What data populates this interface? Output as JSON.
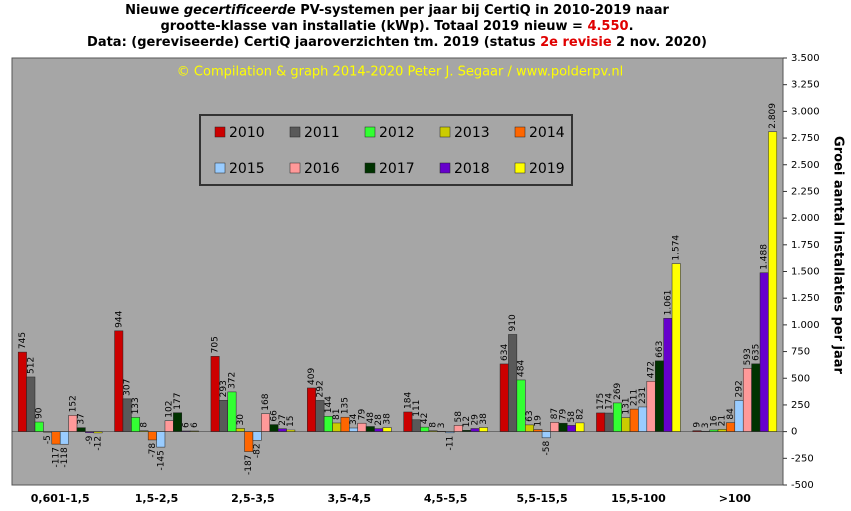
{
  "chart_data": {
    "type": "bar",
    "title": [
      [
        "Nieuwe ",
        "gecertificeerde",
        " PV-systemen per jaar bij CertiQ in 2010-2019 naar"
      ],
      [
        "grootte-klasse van installatie (kWp).  Totaal 2019 nieuw = ",
        "4.550",
        "."
      ],
      [
        "Data: (gereviseerde) CertiQ jaaroverzichten tm. 2019 (status ",
        "2e revisie",
        " 2 nov. 2020)"
      ]
    ],
    "annotation": "© Compilation  & graph 2014-2020 Peter J. Segaar / www.polderpv.nl",
    "y_label": "Groei aantal installaties per jaar",
    "categories": [
      "0,601-1,5",
      "1,5-2,5",
      "2,5-3,5",
      "3,5-4,5",
      "4,5-5,5",
      "5,5-15,5",
      "15,5-100",
      ">100"
    ],
    "series": [
      {
        "name": "2010",
        "color": "#cc0000",
        "values": [
          745,
          944,
          705,
          409,
          184,
          634,
          175,
          9
        ]
      },
      {
        "name": "2011",
        "color": "#595959",
        "values": [
          512,
          307,
          293,
          292,
          111,
          910,
          174,
          3
        ]
      },
      {
        "name": "2012",
        "color": "#33ff33",
        "values": [
          90,
          133,
          372,
          144,
          42,
          484,
          269,
          16
        ]
      },
      {
        "name": "2013",
        "color": "#cccc00",
        "values": [
          -5,
          8,
          30,
          81,
          8,
          63,
          131,
          21
        ]
      },
      {
        "name": "2014",
        "color": "#ff6600",
        "values": [
          -117,
          -78,
          -187,
          135,
          3,
          19,
          211,
          84
        ]
      },
      {
        "name": "2015",
        "color": "#99ccff",
        "values": [
          -118,
          -145,
          -82,
          34,
          -11,
          -58,
          231,
          292
        ]
      },
      {
        "name": "2016",
        "color": "#ff9999",
        "values": [
          152,
          102,
          168,
          79,
          58,
          87,
          472,
          593
        ]
      },
      {
        "name": "2017",
        "color": "#003300",
        "values": [
          37,
          177,
          66,
          48,
          12,
          79,
          663,
          635
        ]
      },
      {
        "name": "2018",
        "color": "#6600cc",
        "values": [
          -9,
          6,
          27,
          28,
          29,
          58,
          1061,
          1488
        ],
        "value_labels": [
          "-9",
          "6",
          "27",
          "28",
          "29",
          "58",
          "1.061",
          "1.488"
        ]
      },
      {
        "name": "2019",
        "color": "#ffff00",
        "values": [
          -12,
          6,
          15,
          38,
          38,
          82,
          1574,
          2809
        ],
        "value_labels": [
          "-12",
          "6",
          "15",
          "38",
          "38",
          "82",
          "1.574",
          "2.809"
        ]
      }
    ],
    "ylim": [
      -500,
      3500
    ],
    "yticks": [
      -500,
      -250,
      0,
      250,
      500,
      750,
      {
        "value": 1000,
        "label": "1.000"
      },
      {
        "value": 1250,
        "label": "1.250"
      },
      {
        "value": 1500,
        "label": "1.500"
      },
      {
        "value": 1750,
        "label": "1.750"
      },
      {
        "value": 2000,
        "label": "2.000"
      },
      {
        "value": 2250,
        "label": "2.250"
      },
      {
        "value": 2500,
        "label": "2.500"
      },
      {
        "value": 2750,
        "label": "2.750"
      },
      {
        "value": 3000,
        "label": "3.000"
      },
      {
        "value": 3250,
        "label": "3.250"
      },
      {
        "value": 3500,
        "label": "3.500"
      }
    ],
    "grid": false,
    "legend": "upper left"
  }
}
